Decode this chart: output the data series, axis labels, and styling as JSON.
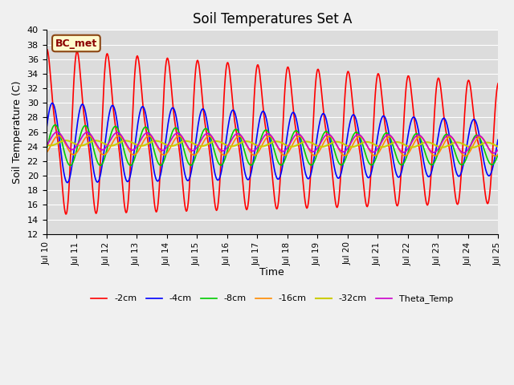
{
  "title": "Soil Temperatures Set A",
  "xlabel": "Time",
  "ylabel": "Soil Temperature (C)",
  "ylim": [
    12,
    40
  ],
  "yticks": [
    12,
    14,
    16,
    18,
    20,
    22,
    24,
    26,
    28,
    30,
    32,
    34,
    36,
    38,
    40
  ],
  "xtick_labels": [
    "Jul 10",
    "Jul 11",
    "Jul 12",
    "Jul 13",
    "Jul 14",
    "Jul 15",
    "Jul 16",
    "Jul 17",
    "Jul 18",
    "Jul 19",
    "Jul 20",
    "Jul 21",
    "Jul 22",
    "Jul 23",
    "Jul 24",
    "Jul 25"
  ],
  "annotation": "BC_met",
  "annotation_color": "#8B0000",
  "annotation_bg": "#FFFACD",
  "bg_color": "#DCDCDC",
  "grid_color": "#FFFFFF",
  "series": [
    {
      "label": "-2cm",
      "color": "#FF0000",
      "linewidth": 1.2
    },
    {
      "label": "-4cm",
      "color": "#0000FF",
      "linewidth": 1.2
    },
    {
      "label": "-8cm",
      "color": "#00CC00",
      "linewidth": 1.2
    },
    {
      "label": "-16cm",
      "color": "#FF8C00",
      "linewidth": 1.2
    },
    {
      "label": "-32cm",
      "color": "#CCCC00",
      "linewidth": 1.5
    },
    {
      "label": "Theta_Temp",
      "color": "#CC00CC",
      "linewidth": 1.2
    }
  ],
  "legend_pos": "lower center",
  "title_fontsize": 12,
  "fig_width": 6.4,
  "fig_height": 4.8,
  "dpi": 100
}
